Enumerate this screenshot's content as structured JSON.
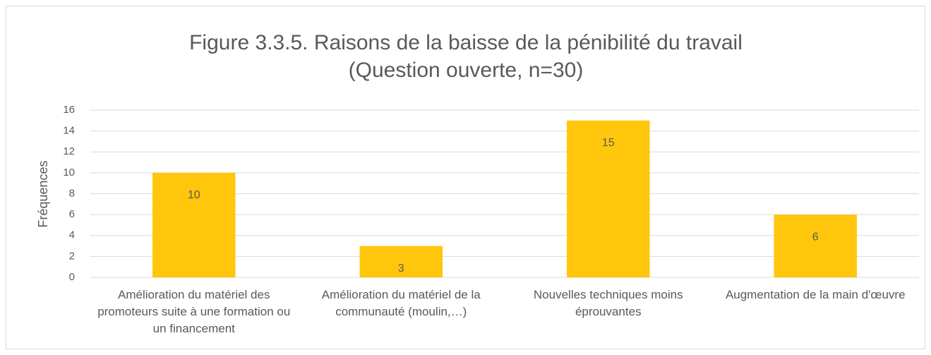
{
  "chart_data": {
    "type": "bar",
    "title": "Figure 3.3.5. Raisons de la baisse de la pénibilité du travail",
    "subtitle": "(Question ouverte, n=30)",
    "y_label": "Fréquences",
    "categories": [
      "Amélioration du matériel des promoteurs suite à une formation ou un financement",
      "Amélioration du matériel de la communauté (moulin,…)",
      "Nouvelles techniques moins éprouvantes",
      "Augmentation de la main d'œuvre"
    ],
    "values": [
      10,
      3,
      15,
      6
    ],
    "color": "#ffc60b",
    "ylim": [
      0,
      16
    ],
    "yticks": [
      0,
      2,
      4,
      6,
      8,
      10,
      12,
      14,
      16
    ],
    "grid": true
  }
}
